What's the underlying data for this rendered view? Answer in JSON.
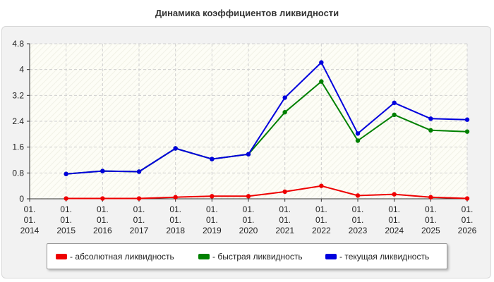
{
  "title": "Динамика коэффициентов ликвидности",
  "colors": {
    "absolute": "#ee0000",
    "quick": "#008000",
    "current": "#0000dd",
    "grid": "#d0d0d0",
    "plot_background": "#fdfdf6"
  },
  "chart_data": {
    "type": "line",
    "title": "Динамика коэффициентов ликвидности",
    "xlabel": "",
    "ylabel": "",
    "ylim": [
      0,
      4.8
    ],
    "y_ticks": [
      "0",
      "0.8",
      "1.6",
      "2.4",
      "3.2",
      "4",
      "4.8"
    ],
    "categories": [
      "01. 01. 2014",
      "01. 01. 2015",
      "01. 01. 2016",
      "01. 01. 2017",
      "01. 01. 2018",
      "01. 01. 2019",
      "01. 01. 2020",
      "01. 01. 2021",
      "01. 01. 2022",
      "01. 01. 2023",
      "01. 01. 2024",
      "01. 01. 2025",
      "01. 01. 2026"
    ],
    "grid": true,
    "legend_position": "bottom",
    "series": [
      {
        "name": "- абсолютная ликвидность",
        "color": "#ee0000",
        "values": [
          null,
          0.01,
          0.01,
          0.01,
          0.05,
          0.08,
          0.08,
          0.22,
          0.4,
          0.1,
          0.14,
          0.05,
          0.01
        ]
      },
      {
        "name": "- быстрая ликвидность",
        "color": "#008000",
        "values": [
          null,
          0.77,
          0.86,
          0.84,
          1.56,
          1.23,
          1.38,
          2.68,
          3.63,
          1.8,
          2.6,
          2.12,
          2.08
        ]
      },
      {
        "name": "- текущая ликвидность",
        "color": "#0000dd",
        "values": [
          null,
          0.77,
          0.86,
          0.84,
          1.56,
          1.23,
          1.38,
          3.13,
          4.22,
          2.02,
          2.97,
          2.48,
          2.45
        ]
      }
    ]
  }
}
